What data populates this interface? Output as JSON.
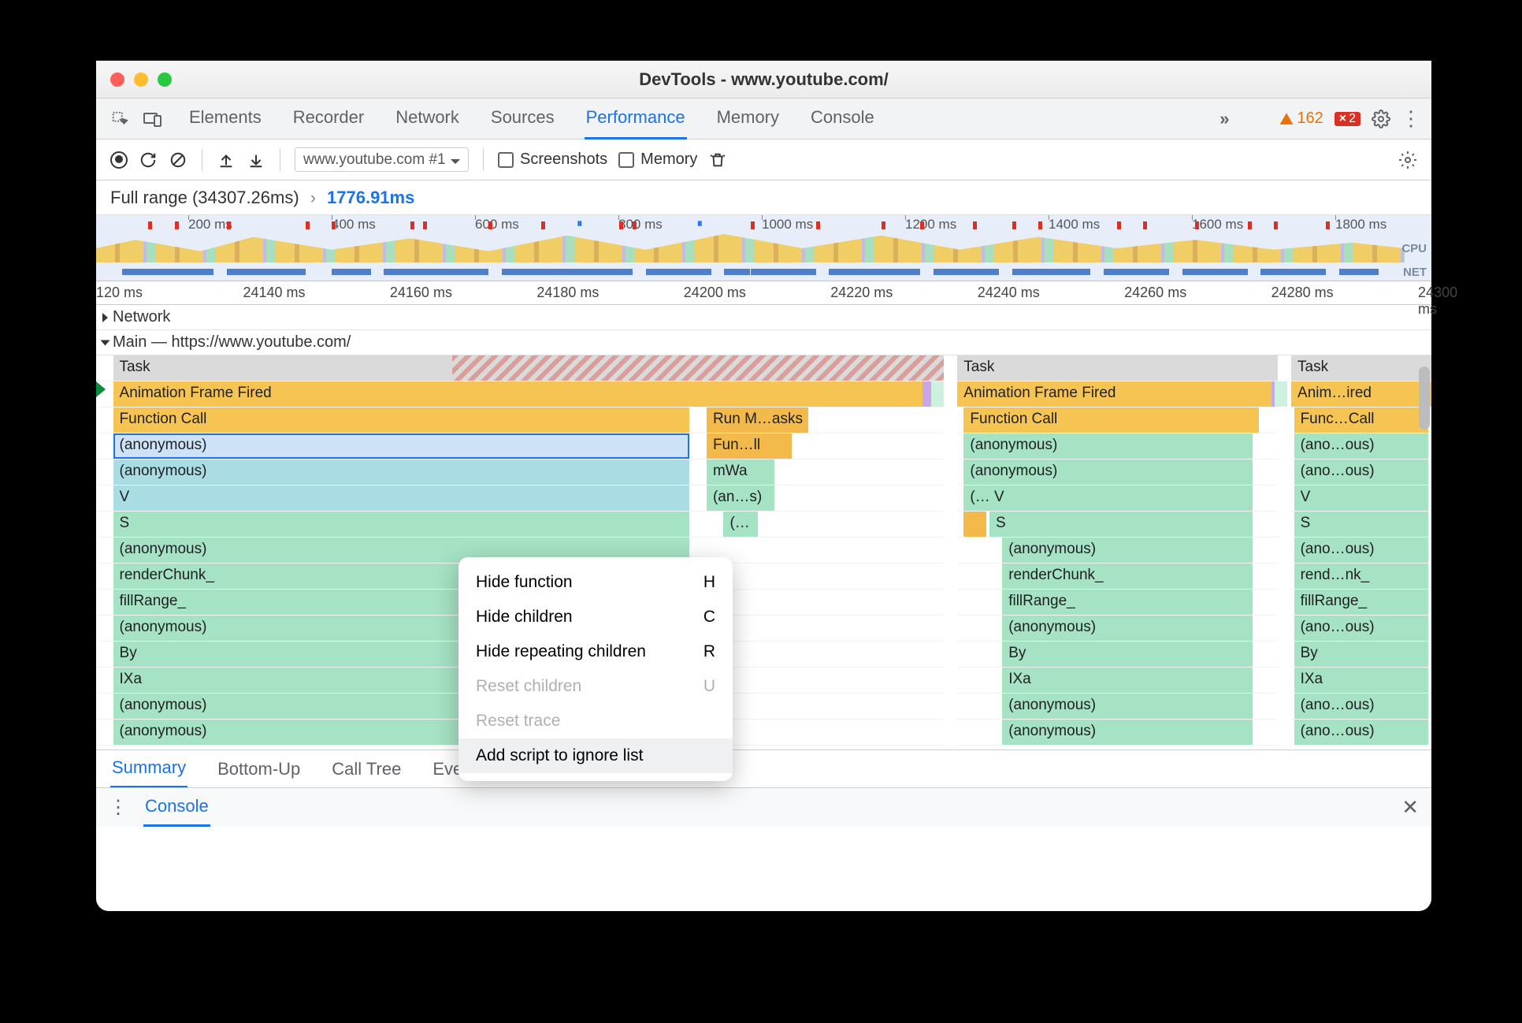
{
  "window": {
    "title": "DevTools - www.youtube.com/"
  },
  "mainTabs": {
    "items": [
      "Elements",
      "Recorder",
      "Network",
      "Sources",
      "Performance",
      "Memory",
      "Console"
    ],
    "activeIndex": 4,
    "overflow": "»",
    "warnings": "162",
    "errors": "2"
  },
  "perfToolbar": {
    "recording": "www.youtube.com #1",
    "screenshots_label": "Screenshots",
    "memory_label": "Memory"
  },
  "breadcrumb": {
    "full_label": "Full range (34307.26ms)",
    "selected_label": "1776.91ms"
  },
  "overview": {
    "tick_labels": [
      "200 ms",
      "400 ms",
      "600 ms",
      "800 ms",
      "1000 ms",
      "1200 ms",
      "1400 ms",
      "1600 ms",
      "1800 ms"
    ],
    "tick_pct": [
      9,
      23,
      37,
      51,
      65,
      79,
      93,
      107,
      121
    ],
    "cpu_label": "CPU",
    "net_label": "NET",
    "mark_pct": [
      4,
      6,
      10,
      16,
      18,
      24,
      25,
      30,
      34,
      40,
      41,
      50,
      55,
      60,
      63,
      67,
      70,
      72,
      78,
      80,
      84,
      88,
      90,
      94
    ],
    "pause_pct": [
      36,
      45
    ],
    "net_segments": [
      [
        2,
        4
      ],
      [
        6,
        3
      ],
      [
        10,
        5
      ],
      [
        14,
        2
      ],
      [
        18,
        3
      ],
      [
        22,
        6
      ],
      [
        28,
        2
      ],
      [
        31,
        3
      ],
      [
        34,
        4
      ],
      [
        38,
        3
      ],
      [
        42,
        5
      ],
      [
        48,
        2
      ],
      [
        50,
        3
      ],
      [
        53,
        2
      ],
      [
        56,
        4
      ],
      [
        60,
        3
      ],
      [
        64,
        2
      ],
      [
        66,
        3
      ],
      [
        70,
        4
      ],
      [
        74,
        2
      ],
      [
        77,
        3
      ],
      [
        80,
        2
      ],
      [
        83,
        3
      ],
      [
        86,
        2
      ],
      [
        89,
        3
      ],
      [
        92,
        2
      ],
      [
        95,
        3
      ]
    ]
  },
  "detailRuler": {
    "labels": [
      "120 ms",
      "24140 ms",
      "24160 ms",
      "24180 ms",
      "24200 ms",
      "24220 ms",
      "24240 ms",
      "24260 ms",
      "24280 ms",
      "24300 ms"
    ],
    "pct": [
      0,
      11,
      22,
      33,
      44,
      55,
      66,
      77,
      88,
      99
    ]
  },
  "laneHeaders": {
    "network": "Network",
    "main": "Main — https://www.youtube.com/"
  },
  "flame": {
    "columns": [
      {
        "left_pct": 0,
        "width_pct": 63.5,
        "rows": [
          {
            "label": "Task",
            "color": "c-gray",
            "l": 2,
            "w": 98,
            "hatch": true
          },
          {
            "label": "Animation Frame Fired",
            "color": "c-yellow",
            "l": 2,
            "w": 96
          },
          {
            "label": "Function Call",
            "color": "c-yellow",
            "l": 2,
            "w": 68
          },
          {
            "label": "(anonymous)",
            "color": "c-cyan",
            "l": 2,
            "w": 68,
            "selected": true
          },
          {
            "label": "(anonymous)",
            "color": "c-cyan",
            "l": 2,
            "w": 68
          },
          {
            "label": "V",
            "color": "c-cyan",
            "l": 2,
            "w": 68
          },
          {
            "label": "S",
            "color": "c-green",
            "l": 2,
            "w": 68
          },
          {
            "label": "(anonymous)",
            "color": "c-green",
            "l": 2,
            "w": 68
          },
          {
            "label": "renderChunk_",
            "color": "c-green",
            "l": 2,
            "w": 68
          },
          {
            "label": "fillRange_",
            "color": "c-green",
            "l": 2,
            "w": 68
          },
          {
            "label": "(anonymous)",
            "color": "c-green",
            "l": 2,
            "w": 68
          },
          {
            "label": "By",
            "color": "c-green",
            "l": 2,
            "w": 68
          },
          {
            "label": "IXa",
            "color": "c-green",
            "l": 2,
            "w": 68
          },
          {
            "label": "(anonymous)",
            "color": "c-green",
            "l": 2,
            "w": 68
          },
          {
            "label": "(anonymous)",
            "color": "c-green",
            "l": 2,
            "w": 68
          }
        ],
        "extras": [
          {
            "row": 2,
            "label": "Run M…asks",
            "color": "c-yellow2",
            "l": 72,
            "w": 12
          },
          {
            "row": 3,
            "label": "Fun…ll",
            "color": "c-yellow2",
            "l": 72,
            "w": 10
          },
          {
            "row": 4,
            "label": "mWa",
            "color": "c-green",
            "l": 72,
            "w": 8
          },
          {
            "row": 5,
            "label": "(an…s)",
            "color": "c-green",
            "l": 72,
            "w": 8
          },
          {
            "row": 6,
            "label": "(…",
            "color": "c-green",
            "l": 74,
            "w": 4
          },
          {
            "row": 1,
            "label": "",
            "color": "c-purple",
            "l": 97.5,
            "w": 1
          },
          {
            "row": 1,
            "label": "",
            "color": "c-lgreen",
            "l": 98.5,
            "w": 1.5
          }
        ]
      },
      {
        "left_pct": 64.5,
        "width_pct": 24,
        "rows": [
          {
            "label": "Task",
            "color": "c-gray",
            "l": 0,
            "w": 100
          },
          {
            "label": "Animation Frame Fired",
            "color": "c-yellow",
            "l": 0,
            "w": 98
          },
          {
            "label": "Function Call",
            "color": "c-yellow",
            "l": 2,
            "w": 92
          },
          {
            "label": "(anonymous)",
            "color": "c-green",
            "l": 2,
            "w": 90
          },
          {
            "label": "(anonymous)",
            "color": "c-green",
            "l": 2,
            "w": 90
          },
          {
            "label": "(…  V",
            "color": "c-green",
            "l": 2,
            "w": 90
          },
          {
            "label": "S",
            "color": "c-green",
            "l": 10,
            "w": 82
          },
          {
            "label": "(anonymous)",
            "color": "c-green",
            "l": 14,
            "w": 78
          },
          {
            "label": "renderChunk_",
            "color": "c-green",
            "l": 14,
            "w": 78
          },
          {
            "label": "fillRange_",
            "color": "c-green",
            "l": 14,
            "w": 78
          },
          {
            "label": "(anonymous)",
            "color": "c-green",
            "l": 14,
            "w": 78
          },
          {
            "label": "By",
            "color": "c-green",
            "l": 14,
            "w": 78
          },
          {
            "label": "IXa",
            "color": "c-green",
            "l": 14,
            "w": 78
          },
          {
            "label": "(anonymous)",
            "color": "c-green",
            "l": 14,
            "w": 78
          },
          {
            "label": "(anonymous)",
            "color": "c-green",
            "l": 14,
            "w": 78
          }
        ],
        "extras": [
          {
            "row": 1,
            "label": "",
            "color": "c-purple",
            "l": 98,
            "w": 1
          },
          {
            "row": 1,
            "label": "",
            "color": "c-lgreen",
            "l": 99,
            "w": 1
          },
          {
            "row": 6,
            "label": "",
            "color": "c-yellow2",
            "l": 2,
            "w": 7
          }
        ]
      },
      {
        "left_pct": 89.5,
        "width_pct": 10.5,
        "rows": [
          {
            "label": "Task",
            "color": "c-gray",
            "l": 0,
            "w": 100
          },
          {
            "label": "Anim…ired",
            "color": "c-yellow",
            "l": 0,
            "w": 100
          },
          {
            "label": "Func…Call",
            "color": "c-yellow",
            "l": 2,
            "w": 96
          },
          {
            "label": "(ano…ous)",
            "color": "c-green",
            "l": 2,
            "w": 96
          },
          {
            "label": "(ano…ous)",
            "color": "c-green",
            "l": 2,
            "w": 96
          },
          {
            "label": "V",
            "color": "c-green",
            "l": 2,
            "w": 96
          },
          {
            "label": "S",
            "color": "c-green",
            "l": 2,
            "w": 96
          },
          {
            "label": "(ano…ous)",
            "color": "c-green",
            "l": 2,
            "w": 96
          },
          {
            "label": "rend…nk_",
            "color": "c-green",
            "l": 2,
            "w": 96
          },
          {
            "label": "fillRange_",
            "color": "c-green",
            "l": 2,
            "w": 96
          },
          {
            "label": "(ano…ous)",
            "color": "c-green",
            "l": 2,
            "w": 96
          },
          {
            "label": "By",
            "color": "c-green",
            "l": 2,
            "w": 96
          },
          {
            "label": "IXa",
            "color": "c-green",
            "l": 2,
            "w": 96
          },
          {
            "label": "(ano…ous)",
            "color": "c-green",
            "l": 2,
            "w": 96
          },
          {
            "label": "(ano…ous)",
            "color": "c-green",
            "l": 2,
            "w": 96
          }
        ],
        "extras": []
      }
    ]
  },
  "contextMenu": {
    "items": [
      {
        "label": "Hide function",
        "shortcut": "H",
        "disabled": false,
        "hover": false
      },
      {
        "label": "Hide children",
        "shortcut": "C",
        "disabled": false,
        "hover": false
      },
      {
        "label": "Hide repeating children",
        "shortcut": "R",
        "disabled": false,
        "hover": false
      },
      {
        "label": "Reset children",
        "shortcut": "U",
        "disabled": true,
        "hover": false
      },
      {
        "label": "Reset trace",
        "shortcut": "",
        "disabled": true,
        "hover": false
      },
      {
        "label": "Add script to ignore list",
        "shortcut": "",
        "disabled": false,
        "hover": true
      }
    ]
  },
  "bottomTabs": {
    "items": [
      "Summary",
      "Bottom-Up",
      "Call Tree",
      "Event Log"
    ],
    "activeIndex": 0
  },
  "drawer": {
    "console_label": "Console"
  },
  "colors": {
    "accent": "#1a73e8",
    "warn": "#e8710a",
    "error": "#d93025",
    "task_gray": "#dadada",
    "event_yellow": "#f6c453",
    "script_cyan": "#a9dce3",
    "script_green": "#a6e2c4"
  }
}
